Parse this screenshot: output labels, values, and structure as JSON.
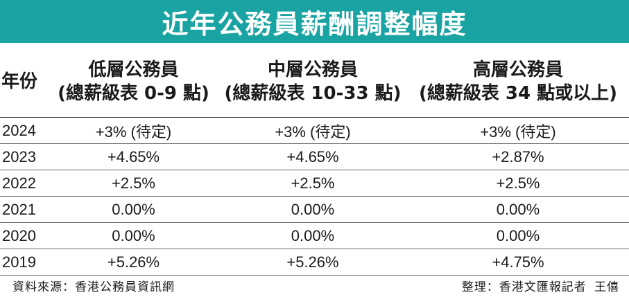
{
  "title": "近年公務員薪酬調整幅度",
  "table": {
    "headers": [
      {
        "line1": "年份",
        "line2": ""
      },
      {
        "line1": "低層公務員",
        "line2": "(總薪級表 0-9 點)"
      },
      {
        "line1": "中層公務員",
        "line2": "(總薪級表 10-33 點)"
      },
      {
        "line1": "高層公務員",
        "line2": "(總薪級表 34 點或以上)"
      }
    ],
    "rows": [
      {
        "year": "2024",
        "low": "+3% (待定)",
        "mid": "+3% (待定)",
        "high": "+3% (待定)"
      },
      {
        "year": "2023",
        "low": "+4.65%",
        "mid": "+4.65%",
        "high": "+2.87%"
      },
      {
        "year": "2022",
        "low": "+2.5%",
        "mid": "+2.5%",
        "high": "+2.5%"
      },
      {
        "year": "2021",
        "low": "0.00%",
        "mid": "0.00%",
        "high": "0.00%"
      },
      {
        "year": "2020",
        "low": "0.00%",
        "mid": "0.00%",
        "high": "0.00%"
      },
      {
        "year": "2019",
        "low": "+5.26%",
        "mid": "+5.26%",
        "high": "+4.75%"
      }
    ]
  },
  "footer": {
    "source": "資料來源：香港公務員資訊網",
    "byline": "整理：香港文匯報記者 王僖"
  },
  "colors": {
    "title_bg": "#1aa3a3",
    "title_text": "#ffffff"
  }
}
